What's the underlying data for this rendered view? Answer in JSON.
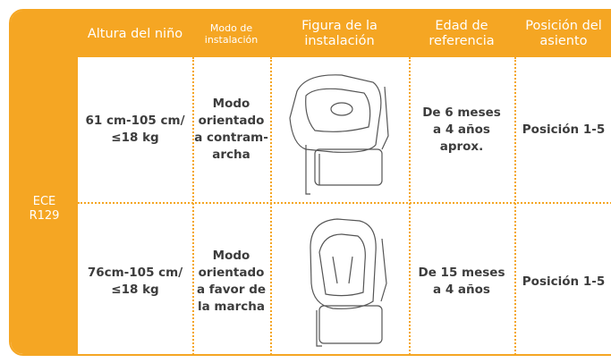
{
  "table": {
    "side_label": [
      "ECE",
      "R129"
    ],
    "header": [
      [
        "Altura del niño"
      ],
      [
        "Modo de",
        "instalación"
      ],
      [
        "Figura de la",
        "instalación"
      ],
      [
        "Edad de",
        "referencia"
      ],
      [
        "Posición del",
        "asiento"
      ]
    ],
    "rows": [
      [
        [
          "61 cm-105 cm/",
          "≤18 kg"
        ],
        [
          "Modo",
          "orientado",
          "a contram-",
          "archa"
        ],
        [
          "De 6 meses",
          "a 4 años",
          "aprox."
        ],
        [
          "Posición 1-5"
        ]
      ],
      [
        [
          "76cm-105 cm/",
          "≤18 kg"
        ],
        [
          "Modo",
          "orientado",
          "a favor de",
          "la marcha"
        ],
        [
          "De 15 meses",
          "a 4 años"
        ],
        [
          "Posición 1-5"
        ]
      ]
    ]
  }
}
